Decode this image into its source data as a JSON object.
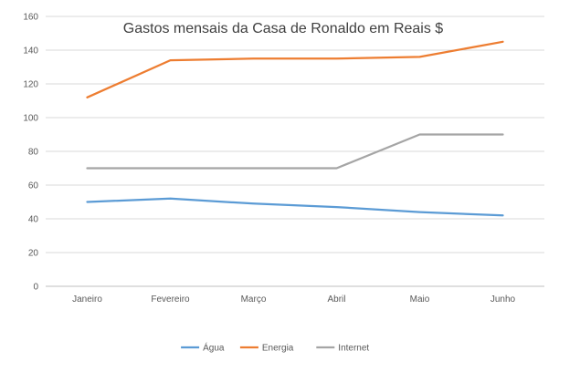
{
  "chart_data": {
    "type": "line",
    "title": "Gastos mensais da Casa de Ronaldo em Reais $",
    "categories": [
      "Janeiro",
      "Fevereiro",
      "Março",
      "Abril",
      "Maio",
      "Junho"
    ],
    "ylim": [
      0,
      160
    ],
    "yticks": [
      "0",
      "20",
      "40",
      "60",
      "80",
      "100",
      "120",
      "140",
      "160"
    ],
    "grid": true,
    "legend_position": "bottom",
    "series": [
      {
        "name": "Água",
        "color": "#5b9bd5",
        "values": [
          50,
          52,
          49,
          47,
          44,
          42
        ]
      },
      {
        "name": "Energia",
        "color": "#ed7d31",
        "values": [
          112,
          134,
          135,
          135,
          136,
          145
        ]
      },
      {
        "name": "Internet",
        "color": "#a5a5a5",
        "values": [
          70,
          70,
          70,
          70,
          90,
          90
        ]
      }
    ]
  }
}
